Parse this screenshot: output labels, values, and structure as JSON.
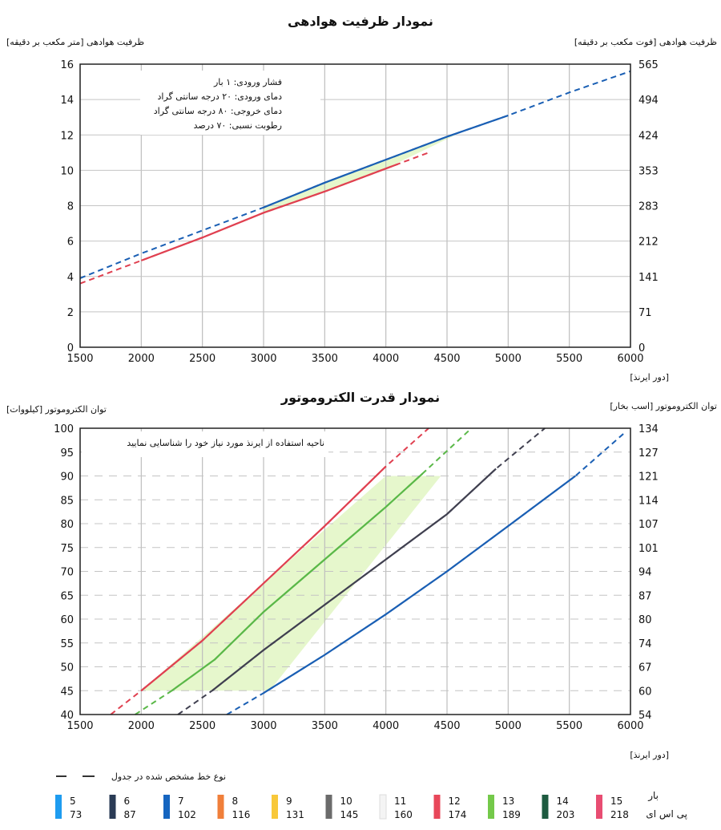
{
  "chart_data": [
    {
      "type": "line",
      "title": "نمودار ظرفیت هوادهی",
      "ylabel_left": "ظرفیت هوادهی [متر مکعب بر دقیقه]",
      "ylabel_right": "ظرفیت هوادهی [فوت مکعب بر دقیقه]",
      "xlabel": "[دور ایرنذ]",
      "xlim": [
        1500,
        6000
      ],
      "xticks": [
        1500,
        2000,
        2500,
        3000,
        3500,
        4000,
        4500,
        5000,
        5500,
        6000
      ],
      "ylim": [
        0,
        16
      ],
      "yticks_left": [
        0,
        2,
        4,
        6,
        8,
        10,
        12,
        14,
        16
      ],
      "yticks_right": [
        "0",
        "71",
        "141",
        "212",
        "283",
        "353",
        "424",
        "494",
        "565"
      ],
      "grid": true,
      "annotation": [
        "فشار ورودی: ۱ بار",
        "دمای ورودی: ۲۰ درجه سانتی گراد",
        "دمای خروجی: ۸۰ درجه سانتی گراد",
        "رطوبت نسبی: ۷۰ درصد"
      ],
      "shaded_region": {
        "x": [
          3000,
          4600
        ],
        "color": "#e6f7cc"
      },
      "series": [
        {
          "color": "#1a5fb4",
          "solid_from": 3000,
          "solid_to": 5000,
          "points": [
            [
              1500,
              3.9
            ],
            [
              2000,
              5.3
            ],
            [
              2500,
              6.6
            ],
            [
              3000,
              7.9
            ],
            [
              3500,
              9.3
            ],
            [
              4000,
              10.6
            ],
            [
              4500,
              11.9
            ],
            [
              5000,
              13.1
            ],
            [
              5500,
              14.4
            ],
            [
              6000,
              15.6
            ]
          ]
        },
        {
          "color": "#e04050",
          "solid_from": 2000,
          "solid_to": 4100,
          "points": [
            [
              1500,
              3.6
            ],
            [
              2000,
              4.9
            ],
            [
              2500,
              6.2
            ],
            [
              3000,
              7.6
            ],
            [
              3500,
              8.8
            ],
            [
              4000,
              10.1
            ],
            [
              4350,
              11.0
            ]
          ]
        }
      ]
    },
    {
      "type": "line",
      "title": "نمودار قدرت الکتروموتور",
      "ylabel_left": "توان الکتروموتور [کیلووات]",
      "ylabel_right": "توان الکتروموتور [اسب بخار]",
      "xlabel": "[دور ایرنذ]",
      "xlim": [
        1500,
        6000
      ],
      "xticks": [
        1500,
        2000,
        2500,
        3000,
        3500,
        4000,
        4500,
        5000,
        5500,
        6000
      ],
      "ylim": [
        40,
        100
      ],
      "yticks_left": [
        40,
        45,
        50,
        55,
        60,
        65,
        70,
        75,
        80,
        85,
        90,
        95,
        100
      ],
      "yticks_right": [
        "54",
        "60",
        "67",
        "74",
        "80",
        "87",
        "94",
        "101",
        "107",
        "114",
        "121",
        "127",
        "134"
      ],
      "grid": true,
      "annotation": [
        "ناحیه استفاده از ایرنذ مورد نیاز خود را شناسایی نمایید"
      ],
      "shaded_region": {
        "polygon": [
          [
            1980,
            45
          ],
          [
            2600,
            45
          ],
          [
            3050,
            45
          ],
          [
            4450,
            90
          ],
          [
            5550,
            90
          ],
          [
            4000,
            90
          ],
          [
            2000,
            45
          ]
        ],
        "y": [
          45,
          90
        ],
        "color": "#e6f7cc"
      },
      "series": [
        {
          "color": "#e04050",
          "solid_from": 2000,
          "solid_to": 4000,
          "points": [
            [
              1750,
              40
            ],
            [
              2000,
              45
            ],
            [
              2500,
              55.5
            ],
            [
              3000,
              67.5
            ],
            [
              3500,
              79.5
            ],
            [
              4000,
              92
            ],
            [
              4350,
              100
            ]
          ]
        },
        {
          "color": "#5ab848",
          "solid_from": 2250,
          "solid_to": 4300,
          "points": [
            [
              1950,
              40
            ],
            [
              2250,
              45
            ],
            [
              2600,
              51.5
            ],
            [
              3000,
              61.5
            ],
            [
              3500,
              72.5
            ],
            [
              4000,
              83.5
            ],
            [
              4300,
              90.5
            ],
            [
              4700,
              100
            ]
          ]
        },
        {
          "color": "#404050",
          "solid_from": 2580,
          "solid_to": 4900,
          "points": [
            [
              2300,
              40
            ],
            [
              2580,
              45
            ],
            [
              3000,
              53.5
            ],
            [
              3500,
              63
            ],
            [
              4000,
              72.5
            ],
            [
              4500,
              82
            ],
            [
              4900,
              91.5
            ],
            [
              5300,
              100
            ]
          ]
        },
        {
          "color": "#1a5fb4",
          "solid_from": 3000,
          "solid_to": 5550,
          "points": [
            [
              2700,
              40
            ],
            [
              3000,
              44.5
            ],
            [
              3500,
              52.5
            ],
            [
              4000,
              61
            ],
            [
              4500,
              70
            ],
            [
              5000,
              79.5
            ],
            [
              5550,
              90
            ],
            [
              5950,
              99
            ]
          ]
        }
      ]
    }
  ],
  "legend": {
    "line_note": "نوع خط مشخص شده در جدول",
    "row1_label": "بار",
    "row2_label": "پی اس ای",
    "items": [
      {
        "bar": "5",
        "psi": "73",
        "color": "#1e9cf0"
      },
      {
        "bar": "6",
        "psi": "87",
        "color": "#2a3b55"
      },
      {
        "bar": "7",
        "psi": "102",
        "color": "#1565c0"
      },
      {
        "bar": "8",
        "psi": "116",
        "color": "#f07f3a"
      },
      {
        "bar": "9",
        "psi": "131",
        "color": "#f8c83a"
      },
      {
        "bar": "10",
        "psi": "145",
        "color": "#6b6b6b"
      },
      {
        "bar": "11",
        "psi": "160",
        "color": "#f4f4f4"
      },
      {
        "bar": "12",
        "psi": "174",
        "color": "#e8475a"
      },
      {
        "bar": "13",
        "psi": "189",
        "color": "#74c94a"
      },
      {
        "bar": "14",
        "psi": "203",
        "color": "#1d5b40"
      },
      {
        "bar": "15",
        "psi": "218",
        "color": "#e84d72"
      }
    ]
  }
}
